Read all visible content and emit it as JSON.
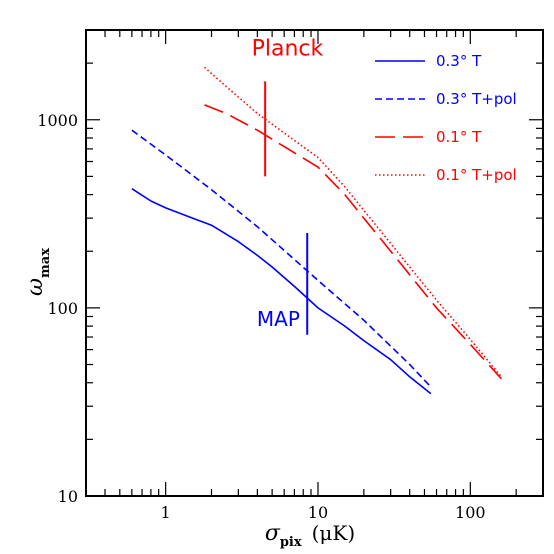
{
  "chart_data": {
    "type": "line",
    "x_scale": "log",
    "y_scale": "log",
    "xlim": [
      0.3,
      300
    ],
    "ylim": [
      10,
      3000
    ],
    "xlabel": {
      "symbol": "σ",
      "sub": "pix",
      "unit": "(μK)"
    },
    "ylabel": {
      "symbol": "ω",
      "sub": "max"
    },
    "x_ticks": [
      {
        "value": 1,
        "label": "1"
      },
      {
        "value": 10,
        "label": "10"
      },
      {
        "value": 100,
        "label": "100"
      }
    ],
    "y_ticks": [
      {
        "value": 10,
        "label": "10"
      },
      {
        "value": 100,
        "label": "100"
      },
      {
        "value": 1000,
        "label": "1000"
      }
    ],
    "legend_position": "top-right",
    "series": [
      {
        "name": "0.3° T",
        "color": "#0000ff",
        "dash": "solid",
        "points": [
          [
            0.6,
            430
          ],
          [
            0.8,
            370
          ],
          [
            1.0,
            340
          ],
          [
            1.5,
            300
          ],
          [
            2.0,
            275
          ],
          [
            3.0,
            225
          ],
          [
            4.0,
            190
          ],
          [
            5.0,
            165
          ],
          [
            7.0,
            130
          ],
          [
            10.0,
            100
          ],
          [
            15.0,
            80
          ],
          [
            20.0,
            67
          ],
          [
            30.0,
            53
          ],
          [
            40.0,
            43
          ],
          [
            55.0,
            35
          ]
        ]
      },
      {
        "name": "0.3° T+pol",
        "color": "#0000ff",
        "dash": "short",
        "points": [
          [
            0.6,
            880
          ],
          [
            1.0,
            650
          ],
          [
            2.0,
            425
          ],
          [
            4.0,
            270
          ],
          [
            10.0,
            140
          ],
          [
            20.0,
            86
          ],
          [
            40.0,
            50
          ],
          [
            55.0,
            38
          ]
        ]
      },
      {
        "name": "0.1° T",
        "color": "#ff0000",
        "dash": "long",
        "points": [
          [
            1.8,
            1200
          ],
          [
            2.5,
            1080
          ],
          [
            4.0,
            880
          ],
          [
            6.0,
            720
          ],
          [
            10.0,
            560
          ],
          [
            15.0,
            400
          ],
          [
            20.0,
            300
          ],
          [
            30.0,
            200
          ],
          [
            40.0,
            150
          ],
          [
            60.0,
            100
          ],
          [
            100.0,
            64
          ],
          [
            160.0,
            42
          ]
        ]
      },
      {
        "name": "0.1° T+pol",
        "color": "#ff0000",
        "dash": "dotted",
        "points": [
          [
            1.8,
            1900
          ],
          [
            2.5,
            1500
          ],
          [
            4.0,
            1080
          ],
          [
            6.0,
            850
          ],
          [
            10.0,
            630
          ],
          [
            15.0,
            440
          ],
          [
            20.0,
            330
          ],
          [
            30.0,
            220
          ],
          [
            40.0,
            165
          ],
          [
            60.0,
            110
          ],
          [
            100.0,
            68
          ],
          [
            160.0,
            43
          ]
        ]
      }
    ],
    "annotations": [
      {
        "text": "Planck",
        "color": "#ff0000",
        "line_x": 4.5,
        "line_ymin": 500,
        "line_ymax": 1600,
        "text_x": 6.3,
        "text_y": 2200
      },
      {
        "text": "MAP",
        "color": "#0000ff",
        "line_x": 8.5,
        "line_ymin": 72,
        "line_ymax": 250,
        "text_x": 5.5,
        "text_y": 80
      }
    ]
  }
}
